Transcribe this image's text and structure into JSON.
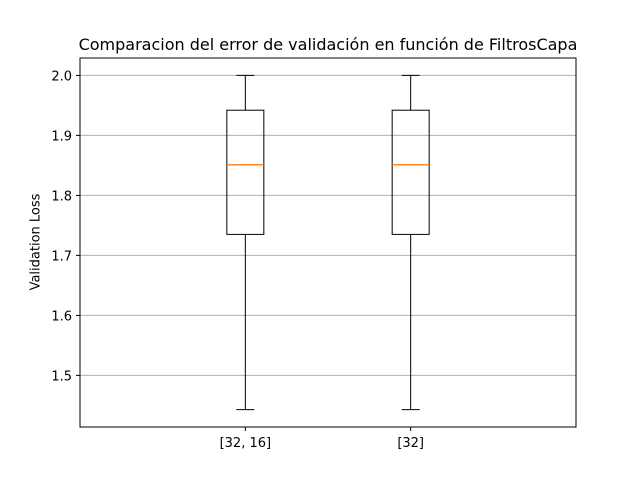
{
  "chart_data": {
    "type": "box",
    "title": "Comparacion del error de validación en función de FiltrosCapa",
    "xlabel": "",
    "ylabel": "Validation Loss",
    "categories": [
      "[32, 16]",
      "[32]"
    ],
    "boxes": [
      {
        "label": "[32, 16]",
        "whisker_low": 1.443,
        "q1": 1.735,
        "median": 1.851,
        "q3": 1.942,
        "whisker_high": 2.0
      },
      {
        "label": "[32]",
        "whisker_low": 1.443,
        "q1": 1.735,
        "median": 1.851,
        "q3": 1.942,
        "whisker_high": 2.0
      }
    ],
    "ylim": [
      1.414,
      2.029
    ],
    "yticks": [
      1.5,
      1.6,
      1.7,
      1.8,
      1.9,
      2.0
    ],
    "ytick_labels": [
      "1.5",
      "1.6",
      "1.7",
      "1.8",
      "1.9",
      "2.0"
    ],
    "grid": "horizontal",
    "colors": {
      "box": "#000000",
      "median": "#ff7f0e",
      "grid": "#b0b0b0",
      "axes": "#000000"
    }
  }
}
